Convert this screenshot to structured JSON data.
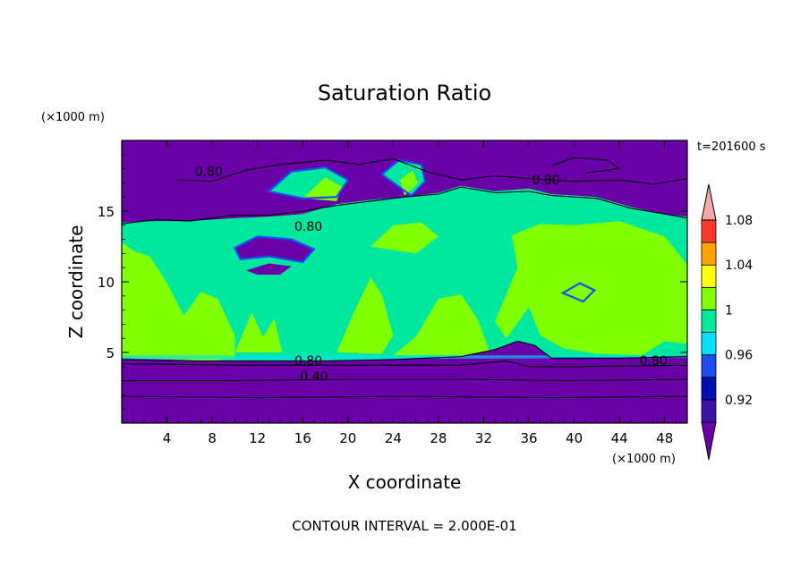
{
  "chart_data": {
    "type": "heatmap",
    "title": "Saturation Ratio",
    "xlabel": "X coordinate",
    "ylabel": "Z coordinate",
    "x_units": "(×1000 m)",
    "y_units": "(×1000 m)",
    "time_label": "t=201600 s",
    "footer": "CONTOUR INTERVAL = 2.000E-01",
    "xlim": [
      0,
      50
    ],
    "ylim": [
      0,
      20
    ],
    "x_ticks": [
      4,
      8,
      12,
      16,
      20,
      24,
      28,
      32,
      36,
      40,
      44,
      48
    ],
    "y_ticks": [
      5,
      10,
      15
    ],
    "colorbar": {
      "levels": [
        0.9,
        0.92,
        0.94,
        0.96,
        0.98,
        1.0,
        1.02,
        1.04,
        1.06,
        1.08,
        1.1
      ],
      "tick_labels": [
        "0.92",
        "0.96",
        "1",
        "1.04",
        "1.08"
      ],
      "colors": [
        "#6a00a8",
        "#3a12a8",
        "#0010b0",
        "#1a4ef0",
        "#00e0ff",
        "#00e8a0",
        "#80ff00",
        "#ffff00",
        "#ffa500",
        "#ff3a2a",
        "#f4a8a8"
      ]
    },
    "contour_labels": [
      "0.80",
      "0.80",
      "0.80",
      "0.80",
      "0.80",
      "0.40"
    ],
    "colors": {
      "very_dry": "#6a00a8",
      "near_saturation": "#00e8a0",
      "saturated": "#80ff00"
    }
  }
}
